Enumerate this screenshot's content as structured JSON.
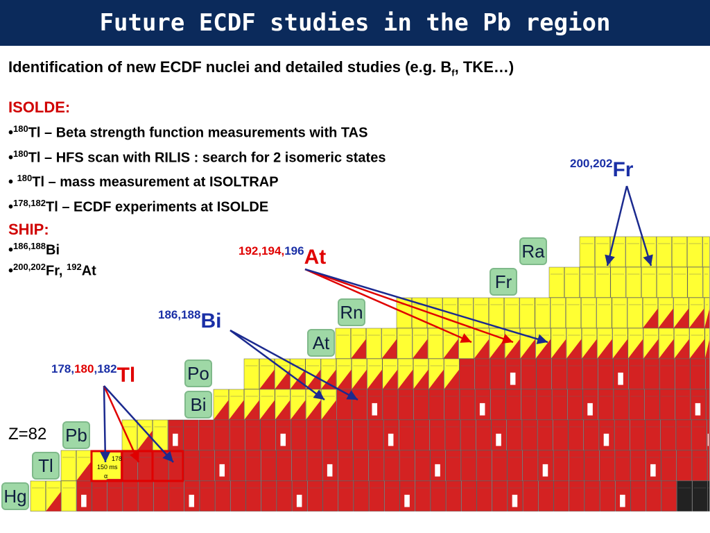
{
  "title": "Future ECDF studies in the Pb region",
  "subtitle": {
    "main": "Identification of new ECDF nuclei and detailed studies (e.g. B",
    "sub": "f",
    "tail": ", TKE…)"
  },
  "isolde": {
    "heading": "ISOLDE:",
    "bullets": [
      {
        "prefix": "•",
        "mass": "180",
        "text": "Tl – Beta strength function measurements with TAS"
      },
      {
        "prefix": "•",
        "mass": "180",
        "text": "Tl – HFS scan with RILIS : search for 2 isomeric states"
      },
      {
        "prefix": "• ",
        "mass": "180",
        "text": "Tl – mass measurement at ISOLTRAP"
      },
      {
        "prefix": "•",
        "mass": "178,182",
        "text": "Tl –  ECDF experiments at ISOLDE"
      }
    ]
  },
  "ship": {
    "heading": "SHIP:",
    "bullets": [
      {
        "prefix": "•",
        "mass": "186,188",
        "text": "Bi"
      },
      {
        "prefix": "•",
        "mass": "200,202",
        "text": "Fr, ",
        "mass2": "192",
        "text2": "At"
      }
    ]
  },
  "labels": {
    "fr": {
      "mass": "200,202",
      "el": "Fr"
    },
    "at": {
      "mass_a": "192,194,",
      "mass_b": "196",
      "el": "At"
    },
    "bi": {
      "mass": "186,188",
      "el": "Bi"
    },
    "tl": {
      "mass_a": "178,",
      "mass_b": "180",
      "mass_c": ",182",
      "el": "Tl"
    }
  },
  "z_label": "Z=82",
  "elements": {
    "ra": "Ra",
    "fr": "Fr",
    "rn": "Rn",
    "at": "At",
    "po": "Po",
    "bi": "Bi",
    "pb": "Pb",
    "tl": "Tl",
    "hg": "Hg"
  },
  "chart_elements": [
    "Ra",
    "Fr",
    "Rn",
    "At",
    "Po",
    "Bi",
    "Pb",
    "Tl",
    "Hg"
  ],
  "chart_highlight": {
    "value": "150 ms",
    "label": "178",
    "decay": "α"
  },
  "colors": {
    "title_bg": "#0b2a5b",
    "yellow": "#ffff33",
    "red": "#d42222",
    "box_green": "#9fd8a6",
    "arrow_blue": "#1b2a8f",
    "arrow_red": "#e00000"
  }
}
